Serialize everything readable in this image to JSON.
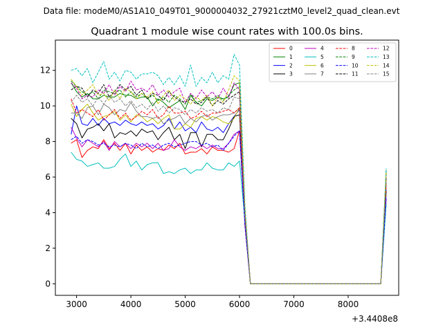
{
  "chart_data": {
    "type": "line",
    "suptitle": "Data file: modeM0/AS1A10_049T01_9000004032_27921cztM0_level2_quad_clean.evt",
    "title": "Quadrant 1 module wise count rates with 100.0s bins.",
    "xlabel": "",
    "ylabel": "",
    "x_offset_label": "+3.4408e8",
    "x_offset": 344080000,
    "xlim": [
      2610,
      8930
    ],
    "ylim": [
      -0.65,
      13.7
    ],
    "xticks": [
      3000,
      4000,
      5000,
      6000,
      7000,
      8000
    ],
    "yticks": [
      0,
      2,
      4,
      6,
      8,
      10,
      12
    ],
    "xtick_labels": [
      "3000",
      "4000",
      "5000",
      "6000",
      "7000",
      "8000"
    ],
    "ytick_labels": [
      "0",
      "2",
      "4",
      "6",
      "8",
      "10",
      "12"
    ],
    "grid": false,
    "legend_placement": "top-right",
    "legend_columns": 4,
    "x": [
      2900,
      3000,
      3100,
      3200,
      3300,
      3400,
      3500,
      3600,
      3700,
      3800,
      3900,
      4000,
      4100,
      4200,
      4300,
      4400,
      4500,
      4600,
      4700,
      4800,
      4900,
      5000,
      5100,
      5200,
      5300,
      5400,
      5500,
      5600,
      5700,
      5800,
      5900,
      6000,
      6100,
      6200,
      6300,
      6400,
      6500,
      6600,
      6700,
      6800,
      6900,
      7000,
      7100,
      7200,
      7300,
      7400,
      7500,
      7600,
      7700,
      7800,
      7900,
      8000,
      8100,
      8200,
      8300,
      8400,
      8500,
      8600,
      8700
    ],
    "series": [
      {
        "name": "0",
        "color": "#ff0000",
        "dash": "solid",
        "values": [
          7.9,
          8.1,
          7.1,
          7.5,
          7.7,
          7.6,
          8.1,
          7.6,
          7.9,
          7.5,
          7.9,
          7.3,
          7.8,
          7.5,
          7.7,
          7.4,
          7.6,
          7.5,
          7.8,
          7.6,
          7.9,
          7.3,
          7.4,
          7.4,
          7.6,
          7.3,
          7.7,
          7.5,
          7.5,
          7.4,
          7.6,
          8.6,
          3.5,
          0.0,
          0.0,
          0.0,
          0.0,
          0.0,
          0.0,
          0.0,
          0.0,
          0.0,
          0.0,
          0.0,
          0.0,
          0.0,
          0.0,
          0.0,
          0.0,
          0.0,
          0.0,
          0.0,
          0.0,
          0.0,
          0.0,
          0.0,
          0.0,
          0.0,
          5.6
        ]
      },
      {
        "name": "1",
        "color": "#008000",
        "dash": "solid",
        "values": [
          11.3,
          10.8,
          10.5,
          10.7,
          10.4,
          10.4,
          10.6,
          10.5,
          10.5,
          10.7,
          10.6,
          10.6,
          10.4,
          10.5,
          10.5,
          10.0,
          10.4,
          10.2,
          9.9,
          10.1,
          10.3,
          9.8,
          10.6,
          10.2,
          10.0,
          10.4,
          10.3,
          10.5,
          10.4,
          10.5,
          11.2,
          11.3,
          4.0,
          0.0,
          0.0,
          0.0,
          0.0,
          0.0,
          0.0,
          0.0,
          0.0,
          0.0,
          0.0,
          0.0,
          0.0,
          0.0,
          0.0,
          0.0,
          0.0,
          0.0,
          0.0,
          0.0,
          0.0,
          0.0,
          0.0,
          0.0,
          0.0,
          0.0,
          6.4
        ]
      },
      {
        "name": "2",
        "color": "#0000ff",
        "dash": "solid",
        "values": [
          8.4,
          10.0,
          9.0,
          8.9,
          9.3,
          8.9,
          9.3,
          9.0,
          9.1,
          8.9,
          9.2,
          9.0,
          8.9,
          9.1,
          8.9,
          9.0,
          8.7,
          8.9,
          9.3,
          8.7,
          9.1,
          8.6,
          8.8,
          8.5,
          9.1,
          8.7,
          8.6,
          8.8,
          8.5,
          9.0,
          9.4,
          9.8,
          3.6,
          0.0,
          0.0,
          0.0,
          0.0,
          0.0,
          0.0,
          0.0,
          0.0,
          0.0,
          0.0,
          0.0,
          0.0,
          0.0,
          0.0,
          0.0,
          0.0,
          0.0,
          0.0,
          0.0,
          0.0,
          0.0,
          0.0,
          0.0,
          0.0,
          0.0,
          5.3
        ]
      },
      {
        "name": "3",
        "color": "#000000",
        "dash": "solid",
        "values": [
          9.3,
          9.0,
          8.2,
          8.7,
          8.8,
          9.0,
          8.6,
          9.0,
          8.2,
          8.5,
          8.4,
          8.6,
          8.3,
          8.7,
          8.5,
          8.6,
          8.1,
          8.5,
          8.8,
          8.1,
          8.4,
          7.6,
          8.5,
          8.5,
          7.7,
          8.4,
          8.4,
          8.1,
          8.1,
          8.7,
          9.4,
          9.5,
          3.4,
          0.0,
          0.0,
          0.0,
          0.0,
          0.0,
          0.0,
          0.0,
          0.0,
          0.0,
          0.0,
          0.0,
          0.0,
          0.0,
          0.0,
          0.0,
          0.0,
          0.0,
          0.0,
          0.0,
          0.0,
          0.0,
          0.0,
          0.0,
          0.0,
          0.0,
          5.2
        ]
      },
      {
        "name": "4",
        "color": "#bf00bf",
        "dash": "solid",
        "values": [
          8.8,
          8.2,
          7.7,
          8.1,
          7.9,
          7.7,
          8.0,
          7.5,
          8.0,
          7.7,
          7.9,
          7.6,
          7.9,
          7.7,
          7.9,
          7.6,
          7.9,
          7.5,
          7.6,
          8.1,
          7.7,
          7.5,
          7.7,
          7.6,
          7.8,
          7.6,
          7.8,
          7.6,
          7.6,
          7.9,
          8.4,
          8.6,
          3.2,
          0.0,
          0.0,
          0.0,
          0.0,
          0.0,
          0.0,
          0.0,
          0.0,
          0.0,
          0.0,
          0.0,
          0.0,
          0.0,
          0.0,
          0.0,
          0.0,
          0.0,
          0.0,
          0.0,
          0.0,
          0.0,
          0.0,
          0.0,
          0.0,
          0.0,
          4.8
        ]
      },
      {
        "name": "5",
        "color": "#00bfbf",
        "dash": "solid",
        "values": [
          7.4,
          7.0,
          6.9,
          6.6,
          6.7,
          6.8,
          6.5,
          6.5,
          6.6,
          7.0,
          7.3,
          6.6,
          6.9,
          6.4,
          6.7,
          6.8,
          6.8,
          6.2,
          6.3,
          6.2,
          6.4,
          6.5,
          6.2,
          6.4,
          6.4,
          6.8,
          6.5,
          6.4,
          6.4,
          6.8,
          6.6,
          6.9,
          3.5,
          0.0,
          0.0,
          0.0,
          0.0,
          0.0,
          0.0,
          0.0,
          0.0,
          0.0,
          0.0,
          0.0,
          0.0,
          0.0,
          0.0,
          0.0,
          0.0,
          0.0,
          0.0,
          0.0,
          0.0,
          0.0,
          0.0,
          0.0,
          0.0,
          0.0,
          4.5
        ]
      },
      {
        "name": "6",
        "color": "#bfbf00",
        "dash": "solid",
        "values": [
          10.1,
          9.4,
          9.8,
          10.1,
          9.6,
          9.2,
          9.4,
          9.5,
          9.7,
          9.2,
          9.5,
          9.1,
          9.5,
          9.4,
          9.1,
          9.3,
          9.0,
          9.3,
          9.5,
          8.7,
          8.7,
          9.0,
          8.8,
          9.3,
          9.4,
          9.2,
          9.4,
          9.3,
          9.1,
          9.0,
          9.3,
          9.9,
          3.7,
          0.0,
          0.0,
          0.0,
          0.0,
          0.0,
          0.0,
          0.0,
          0.0,
          0.0,
          0.0,
          0.0,
          0.0,
          0.0,
          0.0,
          0.0,
          0.0,
          0.0,
          0.0,
          0.0,
          0.0,
          0.0,
          0.0,
          0.0,
          0.0,
          0.0,
          5.9
        ]
      },
      {
        "name": "7",
        "color": "#808080",
        "dash": "solid",
        "values": [
          9.6,
          9.6,
          9.3,
          9.9,
          10.0,
          9.5,
          10.1,
          9.9,
          9.5,
          9.8,
          9.7,
          10.2,
          9.7,
          9.4,
          9.4,
          9.3,
          9.4,
          9.0,
          9.2,
          9.3,
          9.5,
          9.0,
          9.3,
          9.1,
          9.4,
          9.5,
          9.2,
          9.4,
          9.5,
          9.5,
          9.6,
          9.9,
          3.9,
          0.0,
          0.0,
          0.0,
          0.0,
          0.0,
          0.0,
          0.0,
          0.0,
          0.0,
          0.0,
          0.0,
          0.0,
          0.0,
          0.0,
          0.0,
          0.0,
          0.0,
          0.0,
          0.0,
          0.0,
          0.0,
          0.0,
          0.0,
          0.0,
          0.0,
          5.7
        ]
      },
      {
        "name": "8",
        "color": "#ff0000",
        "dash": "dashed",
        "values": [
          10.4,
          9.6,
          9.8,
          9.6,
          9.4,
          9.8,
          9.2,
          9.5,
          9.8,
          9.3,
          9.6,
          9.2,
          9.4,
          9.7,
          9.5,
          9.8,
          9.3,
          9.5,
          10.0,
          9.6,
          9.6,
          9.7,
          9.3,
          9.4,
          9.7,
          9.4,
          9.6,
          9.6,
          9.7,
          9.8,
          9.6,
          9.9,
          3.8,
          0.0,
          0.0,
          0.0,
          0.0,
          0.0,
          0.0,
          0.0,
          0.0,
          0.0,
          0.0,
          0.0,
          0.0,
          0.0,
          0.0,
          0.0,
          0.0,
          0.0,
          0.0,
          0.0,
          0.0,
          0.0,
          0.0,
          0.0,
          0.0,
          0.0,
          5.5
        ]
      },
      {
        "name": "9",
        "color": "#008000",
        "dash": "dashed",
        "values": [
          11.4,
          11.1,
          10.8,
          10.6,
          10.8,
          10.4,
          10.9,
          10.8,
          10.7,
          10.9,
          10.5,
          10.8,
          10.5,
          10.7,
          10.4,
          10.6,
          10.3,
          10.5,
          10.2,
          10.6,
          10.4,
          10.1,
          10.7,
          10.2,
          10.3,
          10.5,
          10.4,
          10.6,
          10.3,
          10.6,
          10.9,
          11.1,
          4.1,
          0.0,
          0.0,
          0.0,
          0.0,
          0.0,
          0.0,
          0.0,
          0.0,
          0.0,
          0.0,
          0.0,
          0.0,
          0.0,
          0.0,
          0.0,
          0.0,
          0.0,
          0.0,
          0.0,
          0.0,
          0.0,
          0.0,
          0.0,
          0.0,
          0.0,
          6.2
        ]
      },
      {
        "name": "10",
        "color": "#0000ff",
        "dash": "dashed",
        "values": [
          8.1,
          8.3,
          7.9,
          8.1,
          8.0,
          7.8,
          7.9,
          7.7,
          7.8,
          7.7,
          7.9,
          7.8,
          7.6,
          7.9,
          7.7,
          7.8,
          7.6,
          7.8,
          7.9,
          7.7,
          7.8,
          7.9,
          8.0,
          8.0,
          7.8,
          7.9,
          7.7,
          7.8,
          7.5,
          7.9,
          8.3,
          8.6,
          3.3,
          0.0,
          0.0,
          0.0,
          0.0,
          0.0,
          0.0,
          0.0,
          0.0,
          0.0,
          0.0,
          0.0,
          0.0,
          0.0,
          0.0,
          0.0,
          0.0,
          0.0,
          0.0,
          0.0,
          0.0,
          0.0,
          0.0,
          0.0,
          0.0,
          0.0,
          4.9
        ]
      },
      {
        "name": "11",
        "color": "#000000",
        "dash": "dashed",
        "values": [
          10.9,
          11.1,
          11.0,
          10.5,
          10.9,
          10.7,
          11.2,
          10.5,
          10.8,
          11.2,
          10.9,
          11.1,
          10.6,
          10.9,
          10.4,
          10.7,
          10.6,
          10.3,
          10.8,
          10.5,
          10.3,
          10.2,
          10.4,
          10.1,
          10.2,
          10.5,
          10.0,
          10.3,
          10.1,
          10.4,
          10.6,
          10.8,
          4.0,
          0.0,
          0.0,
          0.0,
          0.0,
          0.0,
          0.0,
          0.0,
          0.0,
          0.0,
          0.0,
          0.0,
          0.0,
          0.0,
          0.0,
          0.0,
          0.0,
          0.0,
          0.0,
          0.0,
          0.0,
          0.0,
          0.0,
          0.0,
          0.0,
          0.0,
          6.0
        ]
      },
      {
        "name": "12",
        "color": "#bf00bf",
        "dash": "dashed",
        "values": [
          11.3,
          11.0,
          10.4,
          10.6,
          10.5,
          10.9,
          10.7,
          11.2,
          10.6,
          11.1,
          10.8,
          11.4,
          10.9,
          11.0,
          10.8,
          11.2,
          10.6,
          10.9,
          10.5,
          10.8,
          11.0,
          10.2,
          10.7,
          10.4,
          10.9,
          10.5,
          10.8,
          10.4,
          11.0,
          10.5,
          11.3,
          10.9,
          4.1,
          0.0,
          0.0,
          0.0,
          0.0,
          0.0,
          0.0,
          0.0,
          0.0,
          0.0,
          0.0,
          0.0,
          0.0,
          0.0,
          0.0,
          0.0,
          0.0,
          0.0,
          0.0,
          0.0,
          0.0,
          0.0,
          0.0,
          0.0,
          0.0,
          0.0,
          6.1
        ]
      },
      {
        "name": "13",
        "color": "#00bfbf",
        "dash": "dashed",
        "values": [
          12.0,
          12.1,
          11.7,
          12.1,
          11.3,
          11.9,
          12.5,
          11.5,
          11.9,
          11.4,
          12.0,
          11.9,
          11.5,
          11.8,
          11.8,
          11.9,
          11.7,
          11.2,
          11.6,
          11.2,
          11.7,
          11.1,
          12.3,
          11.1,
          11.6,
          11.3,
          11.9,
          11.3,
          11.7,
          11.5,
          12.9,
          12.3,
          4.4,
          0.0,
          0.0,
          0.0,
          0.0,
          0.0,
          0.0,
          0.0,
          0.0,
          0.0,
          0.0,
          0.0,
          0.0,
          0.0,
          0.0,
          0.0,
          0.0,
          0.0,
          0.0,
          0.0,
          0.0,
          0.0,
          0.0,
          0.0,
          0.0,
          0.0,
          6.5
        ]
      },
      {
        "name": "14",
        "color": "#bfbf00",
        "dash": "dashed",
        "values": [
          11.5,
          11.1,
          10.6,
          10.9,
          11.2,
          10.6,
          10.7,
          10.3,
          10.9,
          10.4,
          11.0,
          10.8,
          10.4,
          10.7,
          10.5,
          10.8,
          10.1,
          10.6,
          10.9,
          10.3,
          10.6,
          10.4,
          10.1,
          10.5,
          10.3,
          10.6,
          10.0,
          10.5,
          10.2,
          10.9,
          11.7,
          11.4,
          4.2,
          0.0,
          0.0,
          0.0,
          0.0,
          0.0,
          0.0,
          0.0,
          0.0,
          0.0,
          0.0,
          0.0,
          0.0,
          0.0,
          0.0,
          0.0,
          0.0,
          0.0,
          0.0,
          0.0,
          0.0,
          0.0,
          0.0,
          0.0,
          0.0,
          0.0,
          6.3
        ]
      },
      {
        "name": "15",
        "color": "#808080",
        "dash": "dashed",
        "values": [
          10.2,
          10.6,
          10.2,
          10.4,
          10.0,
          10.5,
          10.1,
          10.6,
          10.2,
          10.4,
          10.0,
          10.3,
          9.9,
          10.1,
          9.8,
          10.2,
          9.7,
          10.0,
          9.6,
          9.9,
          9.8,
          9.5,
          9.8,
          9.6,
          9.9,
          9.7,
          9.8,
          9.6,
          9.9,
          9.8,
          10.5,
          10.4,
          3.9,
          0.0,
          0.0,
          0.0,
          0.0,
          0.0,
          0.0,
          0.0,
          0.0,
          0.0,
          0.0,
          0.0,
          0.0,
          0.0,
          0.0,
          0.0,
          0.0,
          0.0,
          0.0,
          0.0,
          0.0,
          0.0,
          0.0,
          0.0,
          0.0,
          0.0,
          5.8
        ]
      }
    ]
  }
}
